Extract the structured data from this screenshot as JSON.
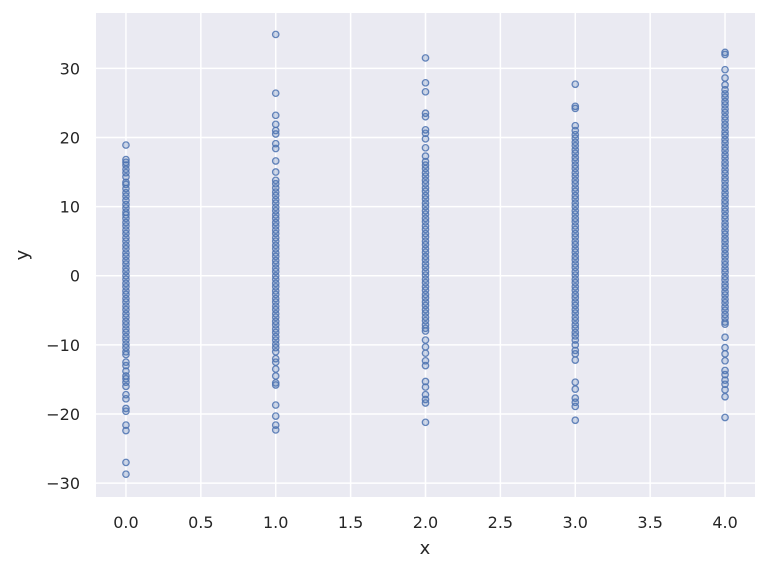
{
  "chart_data": {
    "type": "scatter",
    "title": "",
    "xlabel": "x",
    "ylabel": "y",
    "xlim": [
      -0.2,
      4.2
    ],
    "ylim": [
      -32,
      38
    ],
    "grid": true,
    "legend": null,
    "style": {
      "background": "#eaeaf2",
      "grid_color": "#ffffff",
      "marker_edge": "#4c72b0",
      "marker_fill": "rgba(76,114,176,0.25)",
      "marker": "circle-open"
    },
    "x_ticks": [
      0.0,
      0.5,
      1.0,
      1.5,
      2.0,
      2.5,
      3.0,
      3.5,
      4.0
    ],
    "x_tick_labels": [
      "0.0",
      "0.5",
      "1.0",
      "1.5",
      "2.0",
      "2.5",
      "3.0",
      "3.5",
      "4.0"
    ],
    "y_ticks": [
      -30,
      -20,
      -10,
      0,
      10,
      20,
      30
    ],
    "y_tick_labels": [
      "−30",
      "−20",
      "−10",
      "0",
      "10",
      "20",
      "30"
    ],
    "series": [
      {
        "name": "x=0",
        "x": 0.0,
        "y": [
          18.9,
          16.8,
          16.4,
          16.0,
          15.4,
          14.9,
          14.3,
          13.5,
          13.2,
          12.6,
          12.0,
          11.5,
          10.9,
          10.3,
          9.8,
          9.2,
          8.8,
          8.3,
          7.7,
          7.2,
          6.6,
          6.1,
          5.5,
          5.0,
          4.4,
          3.9,
          3.3,
          2.8,
          2.2,
          1.7,
          1.1,
          0.6,
          0.0,
          -0.5,
          -1.1,
          -1.6,
          -2.2,
          -2.7,
          -3.3,
          -3.8,
          -4.4,
          -4.9,
          -5.5,
          -6.0,
          -6.6,
          -7.1,
          -7.7,
          -8.2,
          -8.8,
          -9.3,
          -9.9,
          -10.4,
          -11.0,
          -11.4,
          -12.5,
          -13.0,
          -13.8,
          -14.5,
          -14.9,
          -15.4,
          -16.0,
          -17.2,
          -17.8,
          -19.2,
          -19.6,
          -21.6,
          -22.4,
          -27.0,
          -28.7
        ]
      },
      {
        "name": "x=1",
        "x": 1.0,
        "y": [
          34.9,
          26.4,
          23.2,
          21.9,
          21.0,
          20.5,
          19.1,
          18.4,
          16.6,
          15.0,
          13.8,
          13.3,
          12.7,
          12.1,
          11.6,
          11.0,
          10.5,
          9.9,
          9.4,
          8.8,
          8.3,
          7.7,
          7.2,
          6.6,
          6.1,
          5.5,
          5.0,
          4.4,
          3.9,
          3.3,
          2.8,
          2.2,
          1.7,
          1.1,
          0.6,
          0.0,
          -0.5,
          -1.1,
          -1.6,
          -2.2,
          -2.7,
          -3.3,
          -3.8,
          -4.4,
          -4.9,
          -5.5,
          -6.0,
          -6.6,
          -7.1,
          -7.7,
          -8.2,
          -8.8,
          -9.3,
          -9.9,
          -10.4,
          -11.0,
          -12.0,
          -12.5,
          -13.5,
          -14.5,
          -15.5,
          -15.8,
          -18.7,
          -20.3,
          -21.6,
          -22.3
        ]
      },
      {
        "name": "x=2",
        "x": 2.0,
        "y": [
          31.5,
          27.9,
          26.6,
          23.5,
          23.0,
          21.1,
          20.6,
          19.8,
          18.5,
          17.3,
          16.5,
          16.0,
          15.5,
          14.9,
          14.4,
          13.8,
          13.3,
          12.7,
          12.2,
          11.6,
          11.1,
          10.5,
          10.0,
          9.4,
          8.9,
          8.3,
          7.8,
          7.2,
          6.7,
          6.1,
          5.6,
          5.0,
          4.5,
          3.9,
          3.4,
          2.8,
          2.3,
          1.7,
          1.2,
          0.6,
          0.1,
          -0.5,
          -1.0,
          -1.6,
          -2.1,
          -2.7,
          -3.2,
          -3.8,
          -4.3,
          -4.9,
          -5.4,
          -6.0,
          -6.5,
          -7.1,
          -7.6,
          -8.0,
          -9.3,
          -10.3,
          -11.2,
          -12.3,
          -13.0,
          -15.3,
          -16.1,
          -17.2,
          -17.9,
          -18.4,
          -21.2
        ]
      },
      {
        "name": "x=3",
        "x": 3.0,
        "y": [
          27.7,
          24.5,
          24.2,
          21.7,
          21.0,
          20.4,
          19.9,
          19.3,
          18.8,
          18.2,
          17.7,
          17.1,
          16.6,
          16.0,
          15.5,
          14.9,
          14.4,
          13.8,
          13.3,
          12.7,
          12.2,
          11.6,
          11.1,
          10.5,
          10.0,
          9.4,
          8.9,
          8.3,
          7.8,
          7.2,
          6.7,
          6.1,
          5.6,
          5.0,
          4.5,
          3.9,
          3.4,
          2.8,
          2.3,
          1.7,
          1.2,
          0.6,
          0.1,
          -0.5,
          -1.0,
          -1.6,
          -2.1,
          -2.7,
          -3.2,
          -3.8,
          -4.3,
          -4.9,
          -5.4,
          -6.0,
          -6.5,
          -7.1,
          -7.6,
          -8.2,
          -8.7,
          -9.3,
          -10.0,
          -10.8,
          -11.3,
          -12.2,
          -15.4,
          -16.4,
          -17.7,
          -18.3,
          -18.9,
          -20.9
        ]
      },
      {
        "name": "x=4",
        "x": 4.0,
        "y": [
          32.3,
          32.0,
          29.8,
          28.6,
          27.6,
          26.9,
          26.3,
          25.8,
          25.2,
          24.7,
          24.1,
          23.6,
          23.0,
          22.5,
          21.9,
          21.4,
          20.8,
          20.3,
          19.7,
          19.2,
          18.6,
          18.1,
          17.5,
          17.0,
          16.4,
          15.9,
          15.3,
          14.8,
          14.2,
          13.7,
          13.1,
          12.6,
          12.0,
          11.5,
          10.9,
          10.4,
          9.8,
          9.3,
          8.7,
          8.2,
          7.6,
          7.1,
          6.5,
          6.0,
          5.4,
          4.9,
          4.3,
          3.8,
          3.2,
          2.7,
          2.1,
          1.6,
          1.0,
          0.5,
          -0.1,
          -0.6,
          -1.2,
          -1.7,
          -2.3,
          -2.8,
          -3.4,
          -3.9,
          -4.5,
          -5.0,
          -5.6,
          -6.1,
          -6.7,
          -7.0,
          -8.9,
          -10.4,
          -11.3,
          -12.3,
          -13.7,
          -14.3,
          -15.1,
          -15.7,
          -16.5,
          -17.5,
          -20.5
        ]
      }
    ]
  }
}
